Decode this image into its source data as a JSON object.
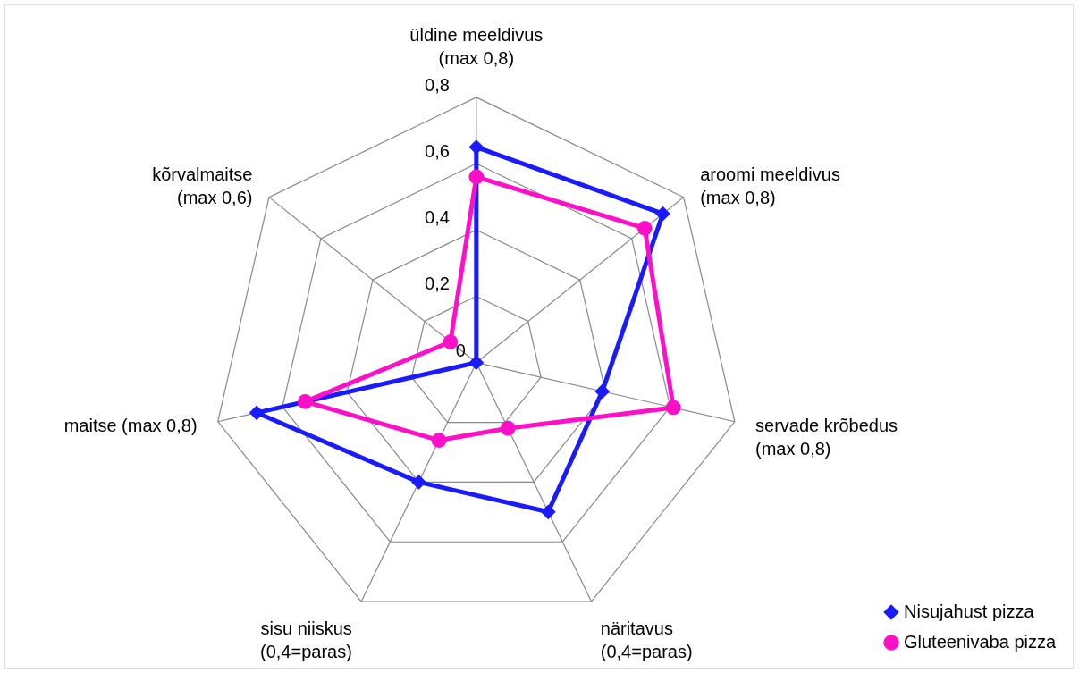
{
  "chart_data": {
    "type": "radar",
    "categories": [
      "üldine meeldivus (max 0,8)",
      "aroomi meeldivus (max 0,8)",
      "servade krõbedus (max 0,8)",
      "näritavus (0,4=paras)",
      "sisu niiskus (0,4=paras)",
      "maitse (max 0,8)",
      "kõrvalmaitse (max 0,6)"
    ],
    "series": [
      {
        "name": "Nisujahust pizza",
        "color": "#1a1aff",
        "marker": "diamond",
        "values": [
          0.65,
          0.72,
          0.39,
          0.5,
          0.4,
          0.68,
          0
        ]
      },
      {
        "name": "Gluteenivaba pizza",
        "color": "#ff10c8",
        "marker": "circle",
        "values": [
          0.56,
          0.65,
          0.61,
          0.22,
          0.26,
          0.53,
          0.1
        ]
      }
    ],
    "ylim": [
      0,
      0.8
    ],
    "yticks": [
      {
        "value": 0,
        "label": "0"
      },
      {
        "value": 0.2,
        "label": "0,2"
      },
      {
        "value": 0.4,
        "label": "0,4"
      },
      {
        "value": 0.6,
        "label": "0,6"
      },
      {
        "value": 0.8,
        "label": "0,8"
      }
    ],
    "grid": true,
    "legend": "bottom right"
  }
}
